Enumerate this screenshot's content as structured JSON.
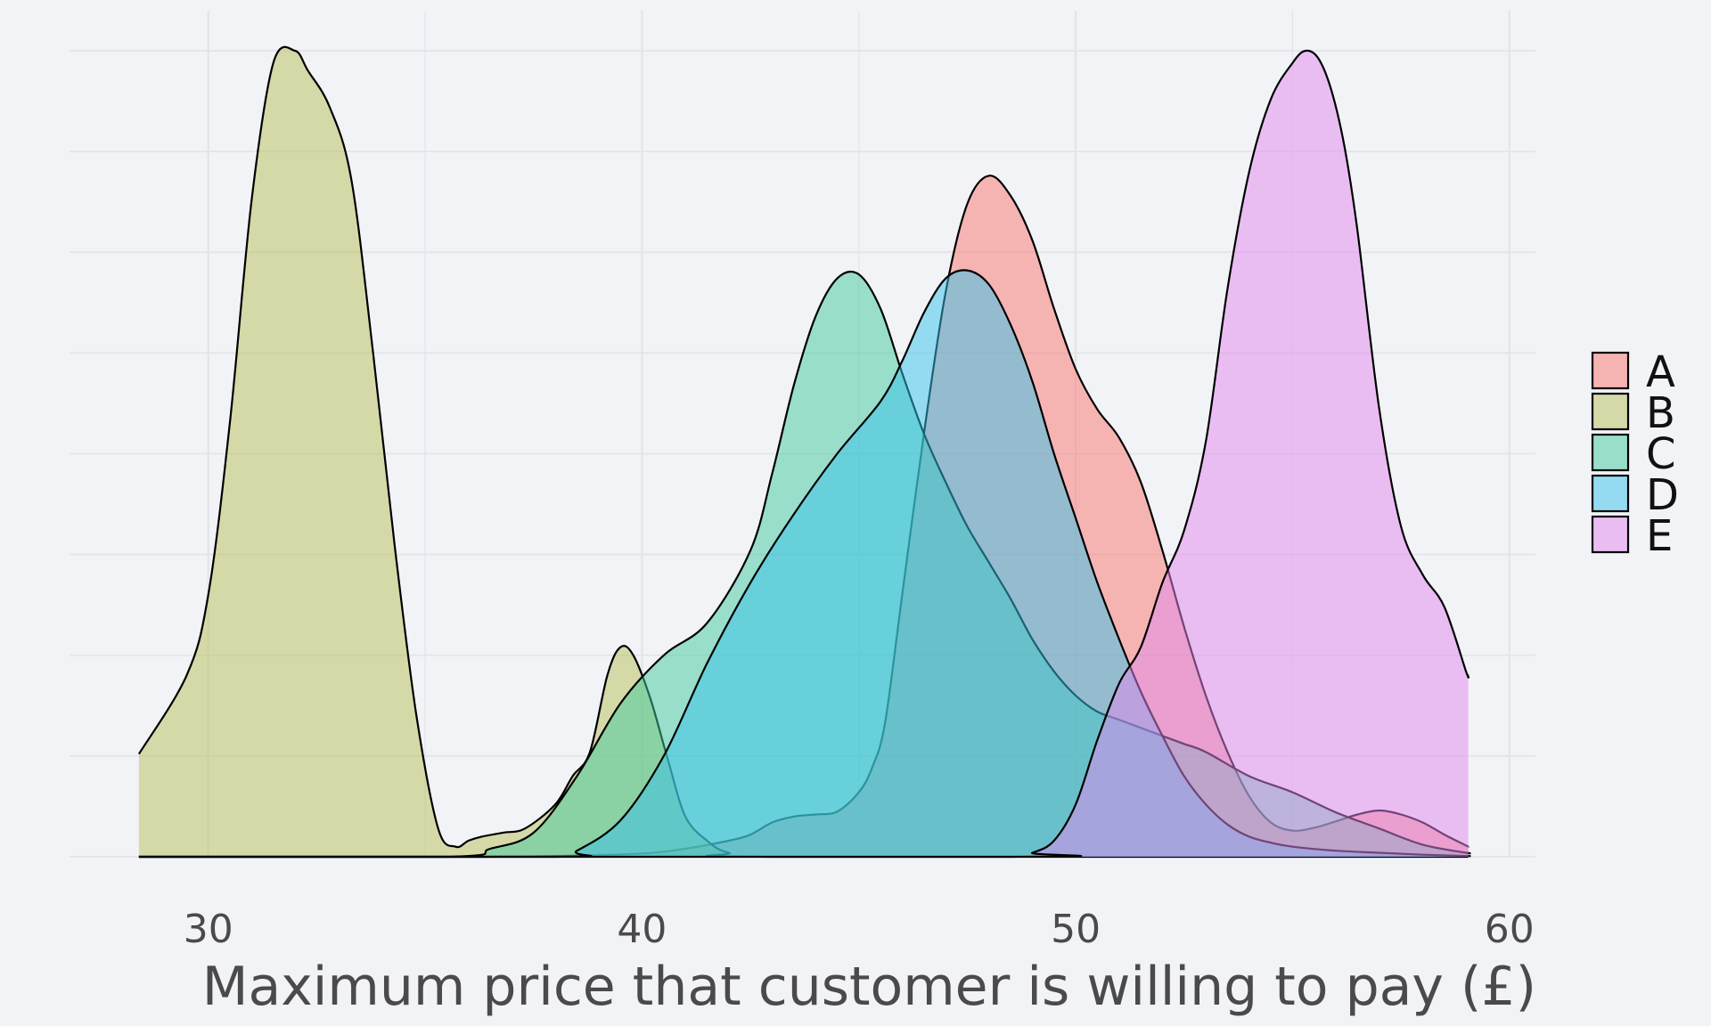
{
  "chart_data": {
    "type": "area",
    "title": "",
    "xlabel": "Maximum price that customer is willing to pay (£)",
    "ylabel": "",
    "xlim": [
      26.8,
      60.6
    ],
    "ylim": [
      0,
      0.2
    ],
    "x_ticks": [
      30,
      40,
      50,
      60
    ],
    "x_tick_labels": [
      "30",
      "40",
      "50",
      "60"
    ],
    "grid": true,
    "legend_position": "right",
    "series": [
      {
        "name": "A",
        "color": "#f8766d",
        "x": [
          28.4,
          36,
          38,
          40,
          41,
          42,
          42.5,
          43,
          43.5,
          44,
          44.5,
          45,
          45.3,
          45.6,
          46,
          46.5,
          47,
          47.5,
          48,
          48.5,
          49,
          49.5,
          50,
          50.5,
          51,
          51.5,
          52,
          52.5,
          53,
          53.5,
          54,
          54.5,
          55,
          55.5,
          56,
          56.5,
          57,
          57.5,
          58,
          58.5,
          59,
          59.05
        ],
        "y": [
          0,
          0,
          0.0002,
          0.0008,
          0.002,
          0.004,
          0.0055,
          0.0085,
          0.01,
          0.0105,
          0.0112,
          0.016,
          0.022,
          0.033,
          0.065,
          0.105,
          0.14,
          0.162,
          0.169,
          0.164,
          0.153,
          0.136,
          0.121,
          0.111,
          0.104,
          0.093,
          0.076,
          0.057,
          0.04,
          0.026,
          0.015,
          0.0085,
          0.0065,
          0.0072,
          0.0088,
          0.0105,
          0.0115,
          0.0105,
          0.0085,
          0.0055,
          0.0028,
          0.0025
        ]
      },
      {
        "name": "B",
        "color": "#b8bf57",
        "x": [
          28.4,
          29.5,
          30,
          30.5,
          31,
          31.5,
          32,
          32.3,
          32.8,
          33.3,
          33.8,
          34.3,
          34.8,
          35.3,
          35.7,
          36,
          36.3,
          36.8,
          37.3,
          38,
          38.4,
          38.8,
          39.2,
          39.5,
          39.8,
          40.2,
          40.6,
          41,
          41.5,
          42,
          43,
          59.05
        ],
        "y": [
          0.0255,
          0.045,
          0.065,
          0.108,
          0.163,
          0.197,
          0.2,
          0.195,
          0.186,
          0.168,
          0.125,
          0.077,
          0.035,
          0.007,
          0.0025,
          0.004,
          0.005,
          0.006,
          0.007,
          0.013,
          0.02,
          0.026,
          0.045,
          0.052,
          0.05,
          0.039,
          0.024,
          0.01,
          0.004,
          0.001,
          0,
          0
        ]
      },
      {
        "name": "C",
        "color": "#3fca9f",
        "x": [
          28.4,
          35.5,
          36.5,
          37.5,
          38.5,
          39.5,
          40.5,
          41.5,
          42.5,
          43,
          43.5,
          44,
          44.5,
          45,
          45.5,
          46,
          46.5,
          47,
          47.5,
          48,
          48.5,
          49,
          49.5,
          50,
          50.5,
          51,
          51.5,
          52,
          52.5,
          53,
          54,
          55,
          56,
          57,
          58,
          59,
          59.05
        ],
        "y": [
          0,
          0,
          0.002,
          0.006,
          0.02,
          0.038,
          0.05,
          0.058,
          0.076,
          0.095,
          0.117,
          0.134,
          0.1435,
          0.1445,
          0.136,
          0.12,
          0.105,
          0.093,
          0.082,
          0.073,
          0.064,
          0.054,
          0.046,
          0.04,
          0.036,
          0.034,
          0.032,
          0.03,
          0.028,
          0.026,
          0.02,
          0.016,
          0.011,
          0.007,
          0.003,
          0.001,
          0.001
        ]
      },
      {
        "name": "D",
        "color": "#36c2ec",
        "x": [
          28.4,
          38,
          38.5,
          39.5,
          40.5,
          41.5,
          42.5,
          43.5,
          44.5,
          45.5,
          46,
          46.5,
          47,
          47.5,
          48,
          48.5,
          49,
          49.5,
          50,
          50.5,
          51,
          51.5,
          52,
          52.5,
          53,
          53.5,
          54,
          54.5,
          55,
          56,
          57,
          58,
          59,
          59.05
        ],
        "y": [
          0,
          0,
          0.0015,
          0.009,
          0.025,
          0.048,
          0.068,
          0.085,
          0.1,
          0.113,
          0.123,
          0.135,
          0.1435,
          0.1455,
          0.142,
          0.132,
          0.118,
          0.1,
          0.084,
          0.068,
          0.054,
          0.041,
          0.03,
          0.02,
          0.013,
          0.008,
          0.005,
          0.0035,
          0.0025,
          0.0015,
          0.001,
          0.0005,
          0.0002,
          0.0002
        ]
      },
      {
        "name": "E",
        "color": "#e287ee",
        "x": [
          28.4,
          48.5,
          49,
          49.5,
          50,
          50.5,
          51,
          51.5,
          52,
          52.5,
          53,
          53.5,
          54,
          54.5,
          55,
          55.3,
          55.6,
          55.9,
          56.2,
          56.5,
          57,
          57.5,
          58,
          58.5,
          59,
          59.05
        ],
        "y": [
          0,
          0,
          0.001,
          0.004,
          0.013,
          0.029,
          0.043,
          0.052,
          0.068,
          0.081,
          0.103,
          0.141,
          0.17,
          0.188,
          0.197,
          0.2,
          0.198,
          0.19,
          0.176,
          0.155,
          0.111,
          0.082,
          0.07,
          0.062,
          0.046,
          0.045
        ]
      }
    ]
  }
}
